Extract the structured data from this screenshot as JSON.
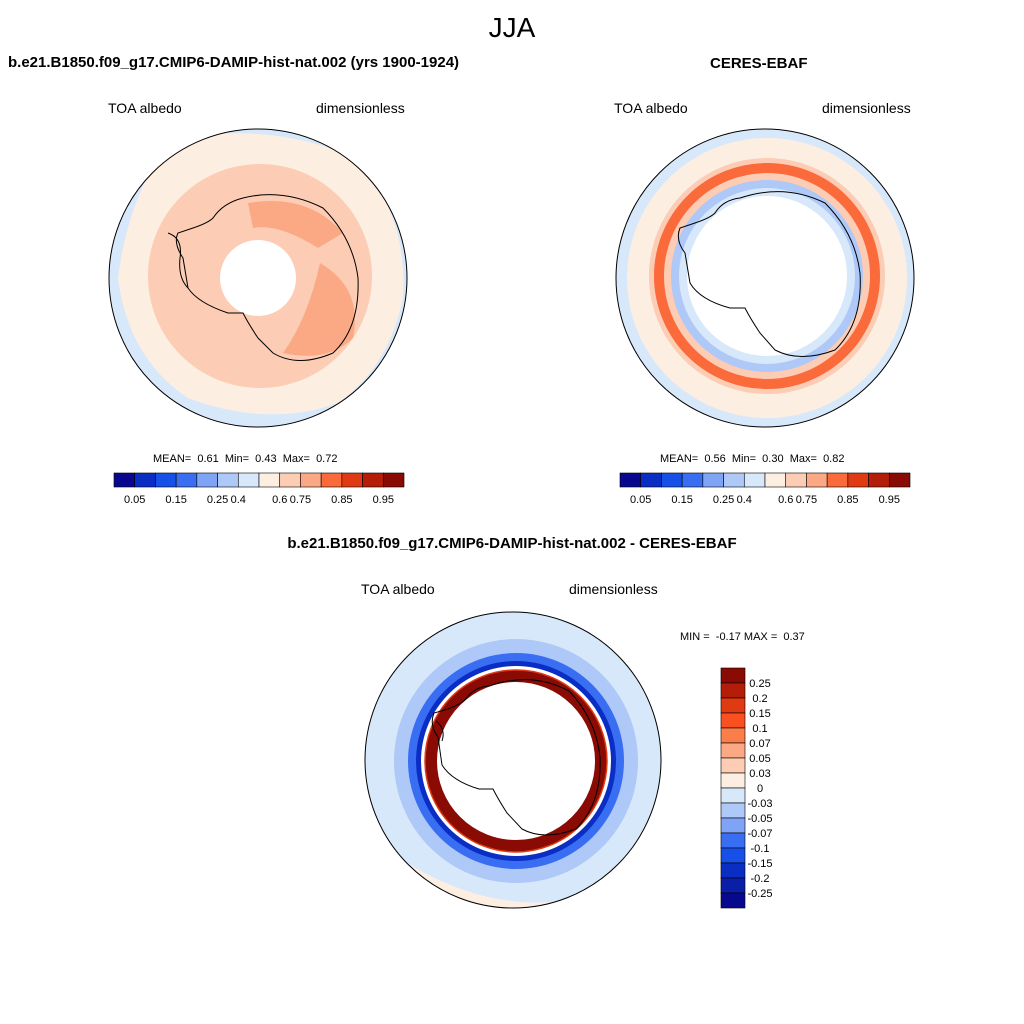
{
  "title": "JJA",
  "panels": [
    {
      "title": "b.e21.B1850.f09_g17.CMIP6-DAMIP-hist-nat.002 (yrs 1900-1924)",
      "left_label": "TOA albedo",
      "right_label": "dimensionless",
      "stats": {
        "mean_label": "MEAN=",
        "mean": "0.61",
        "min_label": "Min=",
        "min": "0.43",
        "max_label": "Max=",
        "max": "0.72"
      },
      "colorbar": {
        "colors": [
          "#08088f",
          "#0a2ec4",
          "#1750e8",
          "#3a6ef2",
          "#7fa4f6",
          "#aec8f8",
          "#d8e8fb",
          "#fdeee2",
          "#fcccb4",
          "#fba985",
          "#fa6a3a",
          "#e03a12",
          "#b41e08",
          "#8a0a04"
        ],
        "tick_labels": [
          "0.05",
          "0.15",
          "0.25",
          "0.4",
          "0.6",
          "0.75",
          "0.85",
          "0.95"
        ]
      }
    },
    {
      "title": "CERES-EBAF",
      "left_label": "TOA albedo",
      "right_label": "dimensionless",
      "stats": {
        "mean_label": "MEAN=",
        "mean": "0.56",
        "min_label": "Min=",
        "min": "0.30",
        "max_label": "Max=",
        "max": "0.82"
      },
      "colorbar": {
        "colors": [
          "#08088f",
          "#0a2ec4",
          "#1750e8",
          "#3a6ef2",
          "#7fa4f6",
          "#aec8f8",
          "#d8e8fb",
          "#fdeee2",
          "#fcccb4",
          "#fba985",
          "#fa6a3a",
          "#e03a12",
          "#b41e08",
          "#8a0a04"
        ],
        "tick_labels": [
          "0.05",
          "0.15",
          "0.25",
          "0.4",
          "0.6",
          "0.75",
          "0.85",
          "0.95"
        ]
      }
    },
    {
      "title": "b.e21.B1850.f09_g17.CMIP6-DAMIP-hist-nat.002 - CERES-EBAF",
      "left_label": "TOA albedo",
      "right_label": "dimensionless",
      "stats": {
        "min_label": "MIN =",
        "min": "-0.17",
        "max_label": "MAX =",
        "max": "0.37"
      },
      "colorbar": {
        "colors": [
          "#8a0a04",
          "#b41e08",
          "#e03a12",
          "#fa5020",
          "#fb7d4a",
          "#fba985",
          "#fcccb4",
          "#fdeee2",
          "#d8e8fb",
          "#aec8f8",
          "#7fa4f6",
          "#3a6ef2",
          "#1750e8",
          "#0a2ec4",
          "#0a1ea8",
          "#08088f"
        ],
        "tick_labels": [
          "0.25",
          "0.2",
          "0.15",
          "0.1",
          "0.07",
          "0.05",
          "0.03",
          "0",
          "-0.03",
          "-0.05",
          "-0.07",
          "-0.1",
          "-0.15",
          "-0.2",
          "-0.25"
        ]
      }
    }
  ]
}
